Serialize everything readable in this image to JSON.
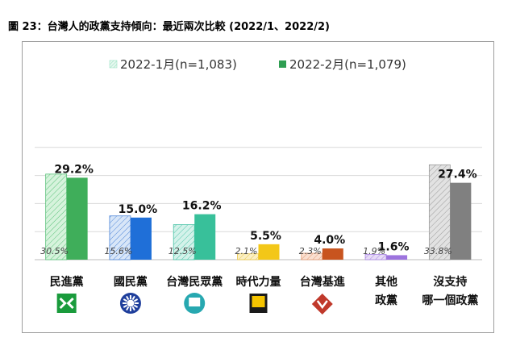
{
  "title": "圖 23：台灣人的政黨支持傾向：最近兩次比較  (2022/1、2022/2)",
  "chart_data": {
    "type": "bar",
    "title": "圖 23：台灣人的政黨支持傾向：最近兩次比較  (2022/1、2022/2)",
    "legend_placement": "top",
    "grid": "horizontal",
    "ylim": [
      0,
      40
    ],
    "categories": [
      {
        "lines": [
          "民進黨"
        ],
        "logo": "dpp-logo-icon"
      },
      {
        "lines": [
          "國民黨"
        ],
        "logo": "kmt-logo-icon"
      },
      {
        "lines": [
          "台灣民眾黨"
        ],
        "logo": "tpp-logo-icon"
      },
      {
        "lines": [
          "時代力量"
        ],
        "logo": "npp-logo-icon"
      },
      {
        "lines": [
          "台灣基進"
        ],
        "logo": "tsp-logo-icon"
      },
      {
        "lines": [
          "其他",
          "政黨"
        ],
        "logo": ""
      },
      {
        "lines": [
          "沒支持",
          "哪一個政黨"
        ],
        "logo": ""
      }
    ],
    "series": [
      {
        "name": "2022-1月(n=1,083)",
        "values": [
          30.5,
          15.6,
          12.5,
          2.1,
          2.3,
          1.9,
          33.8
        ],
        "labels": [
          "30.5%",
          "15.6%",
          "12.5%",
          "2.1%",
          "2.3%",
          "1.9%",
          "33.8%"
        ],
        "style": "hatched"
      },
      {
        "name": "2022-2月(n=1,079)",
        "values": [
          29.2,
          15.0,
          16.2,
          5.5,
          4.0,
          1.6,
          27.4
        ],
        "labels": [
          "29.2%",
          "15.0%",
          "16.2%",
          "5.5%",
          "4.0%",
          "1.6%",
          "27.4%"
        ],
        "style": "solid"
      }
    ],
    "colors": {
      "prev": [
        "#d6f3dc",
        "#d8e6f8",
        "#d4f2ea",
        "#fbf0c4",
        "#fadfd0",
        "#e7dbf7",
        "#e2e2e2"
      ],
      "prev_hatch": [
        "#5cc27b",
        "#4f86d8",
        "#4dc4a8",
        "#e9c64a",
        "#e29a73",
        "#a987e0",
        "#9b9b9b"
      ],
      "curr": [
        "#3fae5a",
        "#1f6fd8",
        "#38c09a",
        "#f3c718",
        "#c8541f",
        "#9d74de",
        "#808080"
      ],
      "legend_prev": "#9be3c4",
      "legend_curr": "#2f9e52"
    }
  }
}
